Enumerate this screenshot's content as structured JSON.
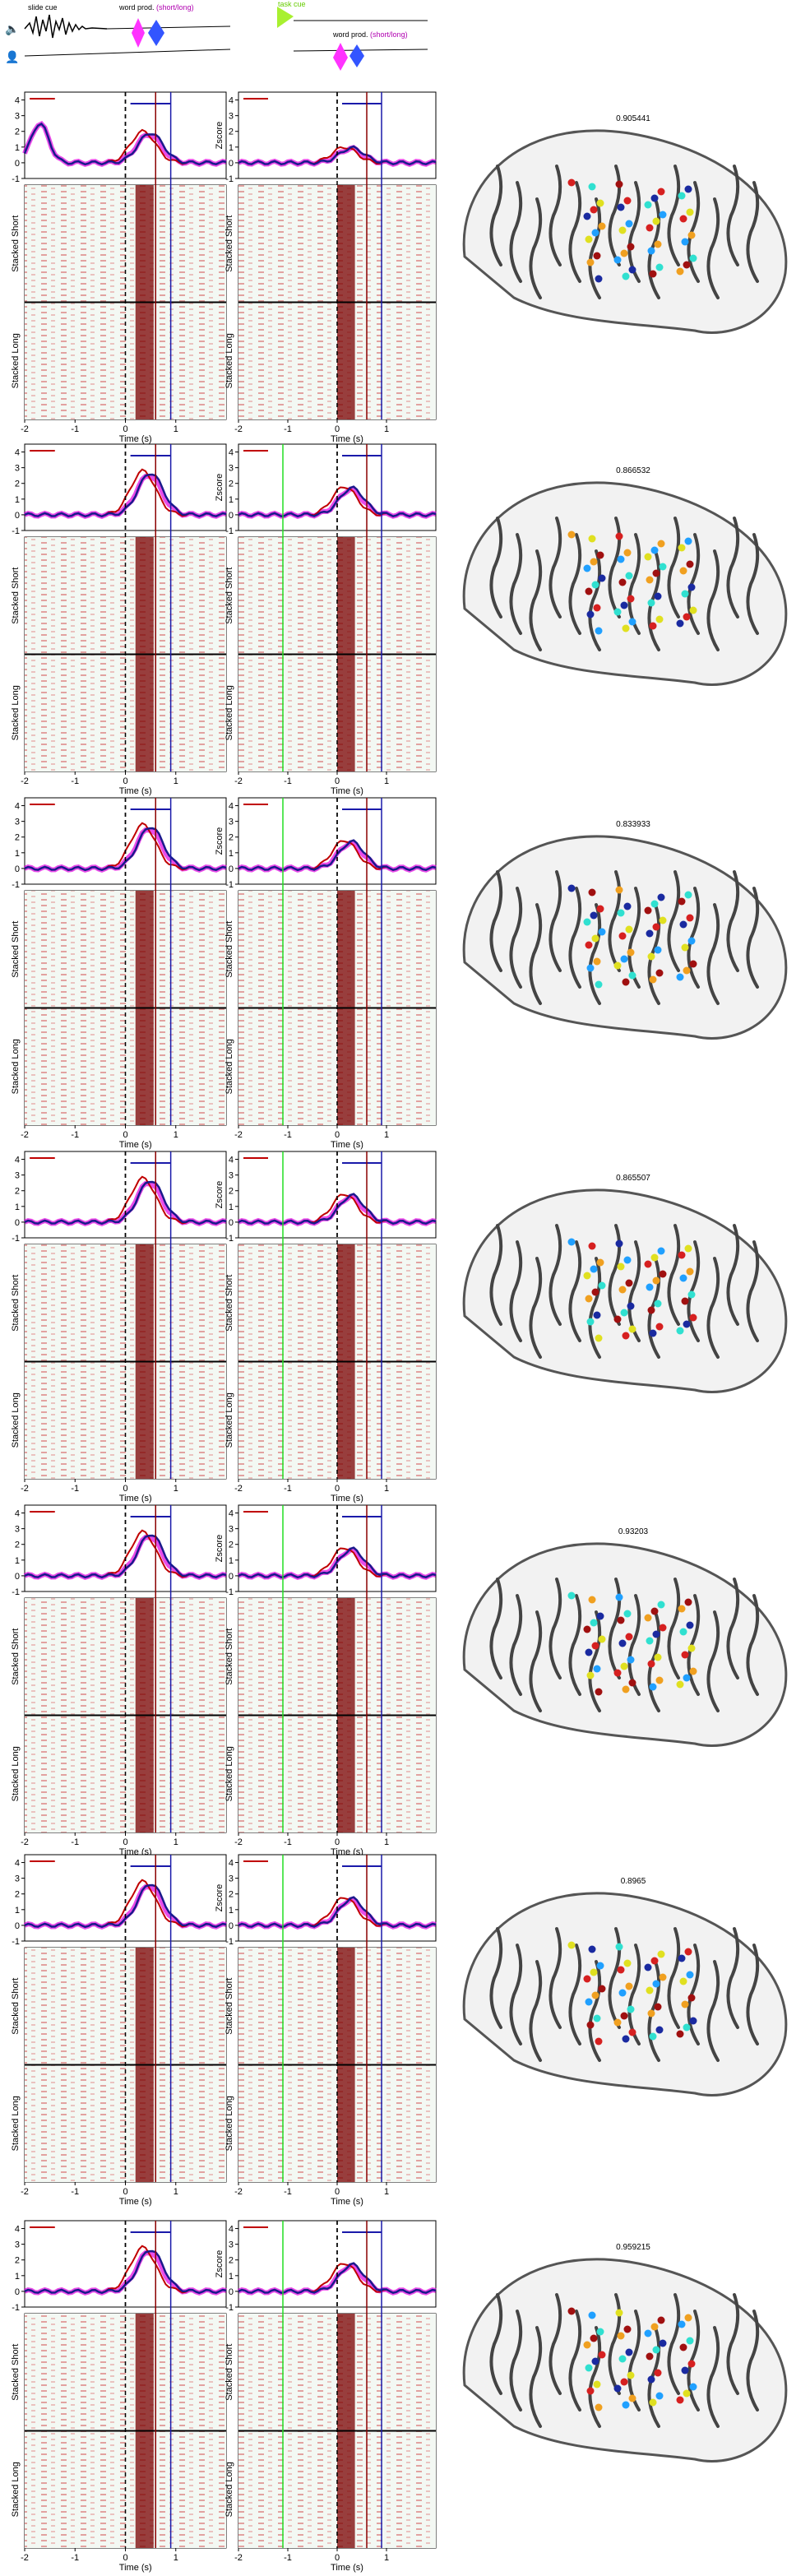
{
  "figure": {
    "legend": {
      "slide_cue": "slide cue",
      "word_prod": "word prod.",
      "short_long": "(short/long)",
      "task_cue": "task cue",
      "short_label": "short",
      "long_label": "long"
    },
    "labels": {
      "zscore": "Zscore",
      "stacked_short": "Stacked Short",
      "stacked_long": "Stacked Long",
      "time": "Time (s)"
    },
    "x_ticks": [
      "-2",
      "-1",
      "0",
      "1"
    ],
    "y_ticks": [
      "4",
      "3",
      "2",
      "1",
      "0",
      "-1"
    ],
    "colors": {
      "short_trace": "#c00000",
      "long_trace": "#1a1a8c",
      "fill": "#e000e0",
      "red_line": "#8b0000",
      "blue_line": "#1a1aaa",
      "green_line": "#22dd22",
      "raster_bg": "#eef6ee"
    },
    "rows": [
      {
        "score": "0.905441"
      },
      {
        "score": "0.866532"
      },
      {
        "score": "0.833933"
      },
      {
        "score": "0.865507"
      },
      {
        "score": "0.93203"
      },
      {
        "score": "0.8965"
      },
      {
        "score": "0.959215"
      }
    ]
  }
}
